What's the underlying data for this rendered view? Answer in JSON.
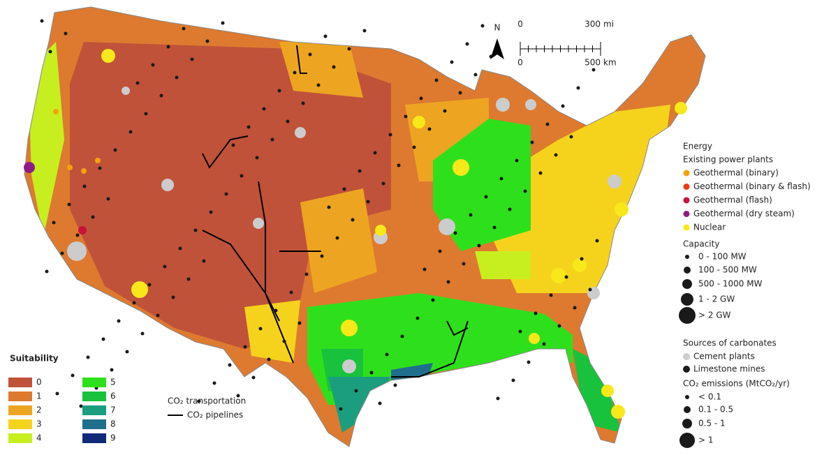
{
  "map": {
    "compass": "N",
    "scale_bar": {
      "miles": {
        "ticks": [
          0,
          300
        ],
        "unit": "mi"
      },
      "kilometers": {
        "ticks": [
          0,
          500
        ],
        "unit": "km"
      }
    }
  },
  "legend": {
    "energy": {
      "title": "Energy",
      "subtitle": "Existing power plants",
      "plants": [
        {
          "label": "Geothermal (binary)",
          "color": "#f5a20a"
        },
        {
          "label": "Geothermal (binary & flash)",
          "color": "#ee3a14"
        },
        {
          "label": "Geothermal (flash)",
          "color": "#c8123c"
        },
        {
          "label": "Geothermal (dry steam)",
          "color": "#8e1a86"
        },
        {
          "label": "Nuclear",
          "color": "#f8e81a"
        }
      ],
      "capacity_title": "Capacity",
      "capacity": [
        "0 - 100 MW",
        "100 - 500 MW",
        "500 - 1000 MW",
        "1 - 2 GW",
        "> 2 GW"
      ]
    },
    "carbonates": {
      "title": "Sources of carbonates",
      "sources": [
        {
          "label": "Cement plants",
          "color": "#cccccc"
        },
        {
          "label": "Limestone mines",
          "color": "#1a1a1a"
        }
      ],
      "emissions_title": "CO₂ emissions (MtCO₂/yr)",
      "emissions": [
        "< 0.1",
        "0.1 - 0.5",
        "0.5 - 1",
        "> 1"
      ]
    },
    "suitability": {
      "title": "Suitability",
      "classes": [
        {
          "label": "0",
          "color": "#c0523a"
        },
        {
          "label": "1",
          "color": "#dd7a2f"
        },
        {
          "label": "2",
          "color": "#eda521"
        },
        {
          "label": "3",
          "color": "#f5d31c"
        },
        {
          "label": "4",
          "color": "#c7ef20"
        },
        {
          "label": "5",
          "color": "#2ee01c"
        },
        {
          "label": "6",
          "color": "#18c23c"
        },
        {
          "label": "7",
          "color": "#1b9e7e"
        },
        {
          "label": "8",
          "color": "#1f6f8c"
        },
        {
          "label": "9",
          "color": "#0f2a78"
        }
      ]
    },
    "transport": {
      "title": "CO₂ transportation",
      "pipelines": {
        "label": "CO₂ pipelines",
        "color": "#000000"
      }
    }
  }
}
